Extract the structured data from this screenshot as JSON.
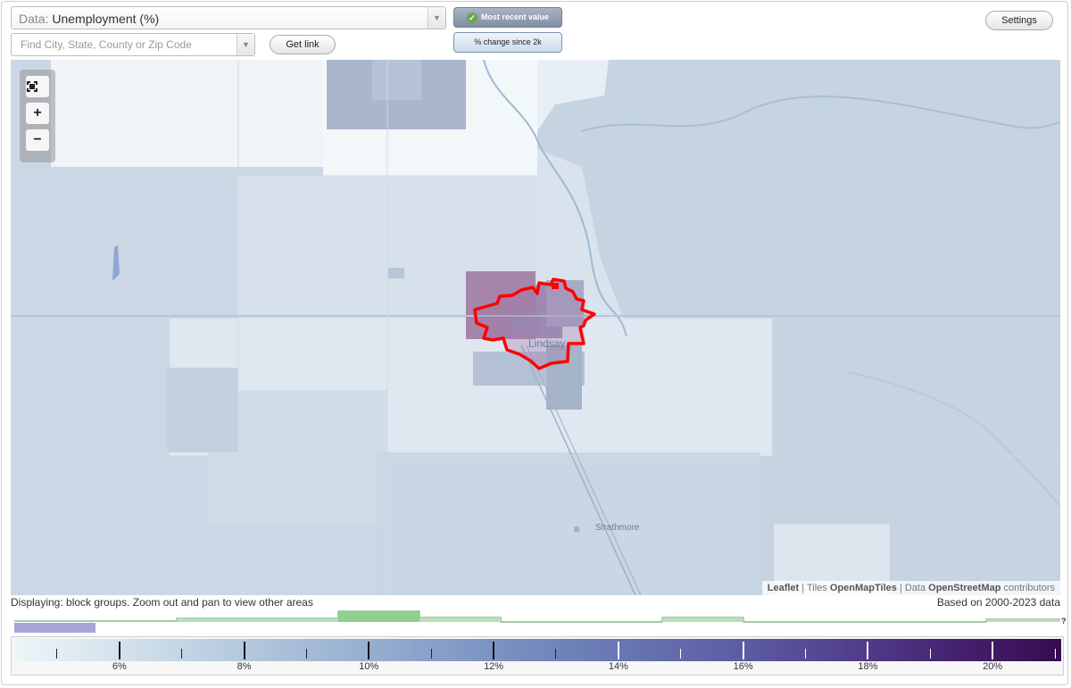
{
  "header": {
    "data_label": "Data:",
    "data_value": "Unemployment (%)",
    "search_placeholder": "Find City, State, County or Zip Code",
    "get_link": "Get link",
    "settings": "Settings",
    "toggle_recent": "Most recent value",
    "toggle_change": "% change since 2k"
  },
  "map": {
    "places": [
      "Lindsay",
      "Strathmore"
    ],
    "attribution": {
      "leaflet": "Leaflet",
      "tiles_prefix": "Tiles",
      "tiles": "OpenMapTiles",
      "data_prefix": "Data",
      "data": "OpenStreetMap",
      "suffix": "contributors"
    },
    "highlight_color": "#ff0000"
  },
  "footer": {
    "display_note": "Displaying: block groups. Zoom out and pan to view other areas",
    "based_on": "Based on 2000-2023 data",
    "help_mark": "?"
  },
  "legend": {
    "min_value": 4.3,
    "max_value": 21.1,
    "labels": [
      "6%",
      "8%",
      "10%",
      "12%",
      "14%",
      "16%",
      "18%",
      "20%"
    ],
    "label_values": [
      6,
      8,
      10,
      12,
      14,
      16,
      18,
      20
    ],
    "minor_values": [
      5,
      7,
      9,
      11,
      13,
      15,
      17,
      19,
      21
    ]
  },
  "histogram": {
    "bar_color": "#8fd08f",
    "selection_color": "#a6a3d8"
  }
}
